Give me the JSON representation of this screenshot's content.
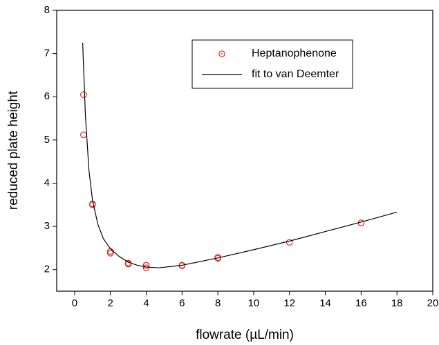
{
  "chart_data": {
    "type": "scatter",
    "xlabel": "flowrate (µL/min)",
    "ylabel": "reduced plate height",
    "xlim": [
      -1,
      20
    ],
    "xticks": [
      0,
      2,
      4,
      6,
      8,
      10,
      12,
      14,
      16,
      18,
      20
    ],
    "ylim": [
      1.5,
      8
    ],
    "yticks": [
      2,
      3,
      4,
      5,
      6,
      7,
      8
    ],
    "legend": "upper right",
    "series": [
      {
        "name": "Heptanophenone",
        "type": "scatter",
        "color": "#e8231f",
        "x": [
          0.5,
          0.5,
          1,
          1,
          2,
          2,
          3,
          3,
          4,
          4,
          6,
          6,
          8,
          8,
          12,
          16
        ],
        "values": [
          6.05,
          5.12,
          3.52,
          3.5,
          2.42,
          2.38,
          2.15,
          2.13,
          2.1,
          2.04,
          2.1,
          2.09,
          2.28,
          2.26,
          2.63,
          3.08
        ]
      },
      {
        "name": "fit to van Deemter",
        "type": "line",
        "color": "#000000",
        "x": [
          0.45,
          0.6,
          0.8,
          1,
          1.3,
          1.6,
          2,
          2.5,
          3,
          3.5,
          4,
          4.7,
          6,
          8,
          10,
          12,
          14,
          16,
          18
        ],
        "values": [
          7.25,
          5.6,
          4.3,
          3.6,
          3.05,
          2.72,
          2.48,
          2.3,
          2.17,
          2.1,
          2.06,
          2.04,
          2.1,
          2.27,
          2.46,
          2.66,
          2.88,
          3.1,
          3.33
        ]
      }
    ]
  }
}
